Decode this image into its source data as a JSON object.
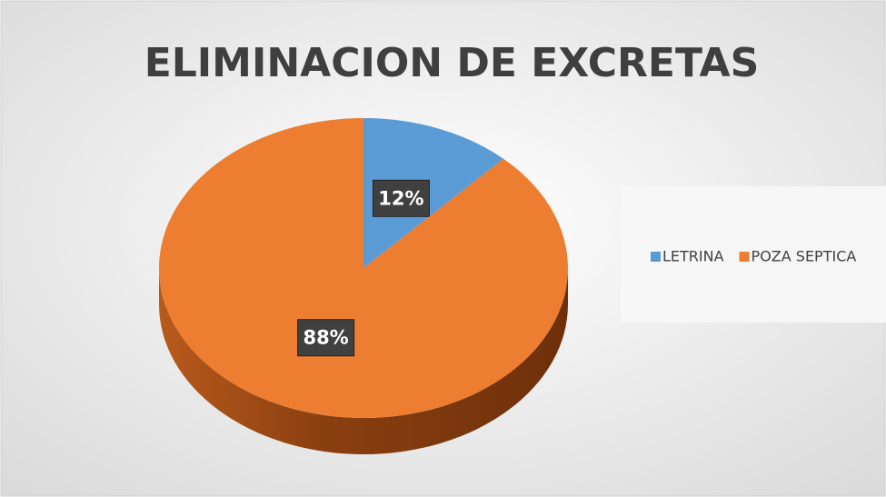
{
  "chart_data": {
    "type": "pie",
    "title": "ELIMINACION DE EXCRETAS",
    "categories": [
      "LETRINA",
      "POZA SEPTICA"
    ],
    "values": [
      12,
      88
    ],
    "value_labels": [
      "12%",
      "88%"
    ],
    "colors": [
      "#5b9bd5",
      "#ed7d31"
    ],
    "legend": "right"
  }
}
